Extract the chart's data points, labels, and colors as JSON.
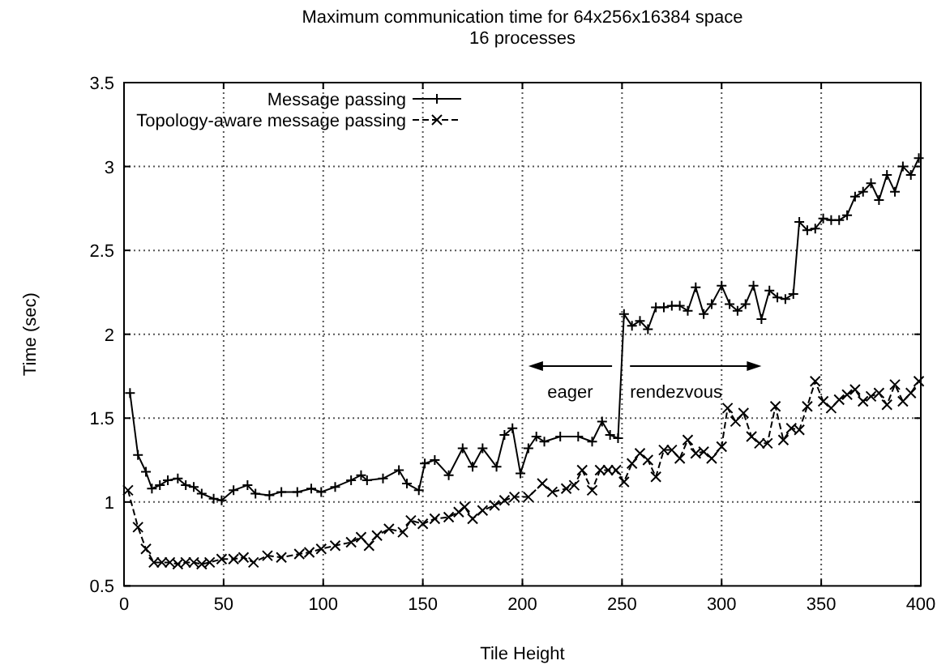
{
  "chart_data": {
    "type": "line",
    "title": "Maximum communication time for 64x256x16384 space",
    "subtitle": "16 processes",
    "xlabel": "Tile Height",
    "ylabel": "Time (sec)",
    "xlim": [
      0,
      400
    ],
    "xticks": [
      0,
      50,
      100,
      150,
      200,
      250,
      300,
      350,
      400
    ],
    "ylim": [
      0.5,
      3.5
    ],
    "yticks": [
      0.5,
      1,
      1.5,
      2,
      2.5,
      3,
      3.5
    ],
    "grid": true,
    "legend": "top left",
    "annotations": [
      "eager",
      "rendezvous"
    ],
    "series": [
      {
        "name": "Message passing",
        "color": "#000000",
        "marker": "cross",
        "line_style": "solid",
        "x": [
          3,
          7,
          11,
          14,
          18,
          22,
          27,
          31,
          35,
          39,
          45,
          49,
          55,
          62,
          66,
          73,
          79,
          87,
          94,
          99,
          106,
          114,
          119,
          122,
          130,
          138,
          142,
          148,
          151,
          156,
          163,
          170,
          175,
          180,
          187,
          191,
          195,
          199,
          203,
          207,
          211,
          219,
          228,
          235,
          240,
          244,
          248,
          251,
          255,
          259,
          263,
          267,
          271,
          275,
          279,
          283,
          287,
          291,
          295,
          300,
          304,
          308,
          312,
          316,
          320,
          324,
          328,
          332,
          336,
          339,
          343,
          347,
          351,
          355,
          359,
          363,
          367,
          371,
          375,
          379,
          383,
          387,
          391,
          395,
          399
        ],
        "values": [
          1.65,
          1.28,
          1.18,
          1.08,
          1.1,
          1.13,
          1.14,
          1.1,
          1.09,
          1.05,
          1.02,
          1.01,
          1.07,
          1.1,
          1.05,
          1.04,
          1.06,
          1.06,
          1.08,
          1.06,
          1.09,
          1.13,
          1.16,
          1.13,
          1.14,
          1.19,
          1.11,
          1.07,
          1.23,
          1.25,
          1.16,
          1.32,
          1.21,
          1.32,
          1.21,
          1.4,
          1.44,
          1.17,
          1.32,
          1.39,
          1.36,
          1.39,
          1.39,
          1.36,
          1.48,
          1.4,
          1.38,
          2.12,
          2.05,
          2.08,
          2.03,
          2.16,
          2.16,
          2.17,
          2.17,
          2.14,
          2.28,
          2.12,
          2.18,
          2.29,
          2.18,
          2.14,
          2.18,
          2.29,
          2.09,
          2.26,
          2.22,
          2.21,
          2.24,
          2.67,
          2.62,
          2.63,
          2.69,
          2.68,
          2.68,
          2.71,
          2.82,
          2.85,
          2.9,
          2.8,
          2.95,
          2.85,
          3.0,
          2.95,
          3.05
        ]
      },
      {
        "name": "Topology-aware message passing",
        "color": "#000000",
        "marker": "x",
        "line_style": "dashed",
        "x": [
          2,
          7,
          11,
          15,
          19,
          23,
          27,
          31,
          35,
          39,
          43,
          49,
          55,
          60,
          65,
          72,
          79,
          88,
          93,
          99,
          106,
          114,
          119,
          123,
          127,
          133,
          140,
          144,
          150,
          156,
          163,
          168,
          171,
          175,
          180,
          186,
          191,
          196,
          203,
          210,
          215,
          222,
          226,
          230,
          235,
          239,
          243,
          247,
          251,
          255,
          259,
          263,
          267,
          271,
          275,
          279,
          283,
          287,
          291,
          295,
          300,
          303,
          307,
          311,
          315,
          319,
          323,
          327,
          331,
          335,
          339,
          343,
          347,
          351,
          355,
          359,
          363,
          367,
          371,
          375,
          379,
          383,
          387,
          391,
          395,
          399
        ],
        "values": [
          1.07,
          0.85,
          0.72,
          0.64,
          0.64,
          0.64,
          0.63,
          0.64,
          0.64,
          0.63,
          0.64,
          0.66,
          0.66,
          0.67,
          0.64,
          0.68,
          0.67,
          0.69,
          0.7,
          0.72,
          0.74,
          0.76,
          0.79,
          0.74,
          0.8,
          0.84,
          0.82,
          0.89,
          0.87,
          0.9,
          0.91,
          0.94,
          0.97,
          0.9,
          0.95,
          0.98,
          1.01,
          1.03,
          1.03,
          1.11,
          1.06,
          1.08,
          1.1,
          1.19,
          1.07,
          1.19,
          1.19,
          1.19,
          1.12,
          1.23,
          1.29,
          1.25,
          1.15,
          1.31,
          1.31,
          1.26,
          1.37,
          1.29,
          1.3,
          1.26,
          1.33,
          1.56,
          1.48,
          1.53,
          1.39,
          1.35,
          1.35,
          1.57,
          1.37,
          1.44,
          1.43,
          1.57,
          1.72,
          1.6,
          1.56,
          1.61,
          1.64,
          1.67,
          1.6,
          1.63,
          1.65,
          1.58,
          1.7,
          1.6,
          1.65,
          1.72
        ]
      }
    ]
  }
}
